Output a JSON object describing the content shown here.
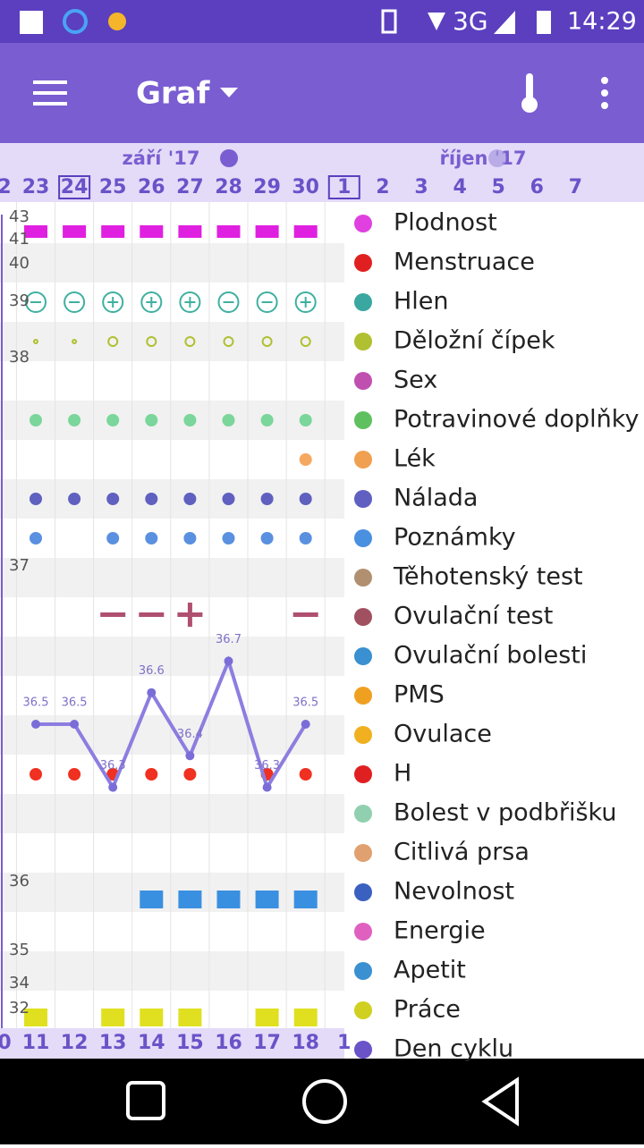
{
  "status_bar": {
    "network": "3G",
    "time": "14:29"
  },
  "toolbar": {
    "title": "Graf"
  },
  "months": [
    "září '17",
    "říjen '17"
  ],
  "top_days": [
    "2",
    "23",
    "24",
    "25",
    "26",
    "27",
    "28",
    "29",
    "30",
    "1",
    "2",
    "3",
    "4",
    "5",
    "6",
    "7"
  ],
  "bottom_days": [
    "0",
    "11",
    "12",
    "13",
    "14",
    "15",
    "16",
    "17",
    "18",
    "1"
  ],
  "temperature_axis": [
    43,
    41,
    40,
    39,
    38,
    37,
    36,
    35,
    34,
    32
  ],
  "temperature": {
    "values": [
      36.5,
      36.5,
      36.3,
      36.6,
      36.4,
      36.7,
      36.3,
      36.5
    ]
  },
  "legend": [
    "Plodnost",
    "Menstruace",
    "Hlen",
    "Děložní čípek",
    "Sex",
    "Potravinové doplňky",
    "Lék",
    "Nálada",
    "Poznámky",
    "Těhotenský test",
    "Ovulační test",
    "Ovulační bolesti",
    "PMS",
    "Ovulace",
    "H",
    "Bolest v podbřišku",
    "Citlivá prsa",
    "Nevolnost",
    "Energie",
    "Apetit",
    "Práce",
    "Den cyklu"
  ]
}
